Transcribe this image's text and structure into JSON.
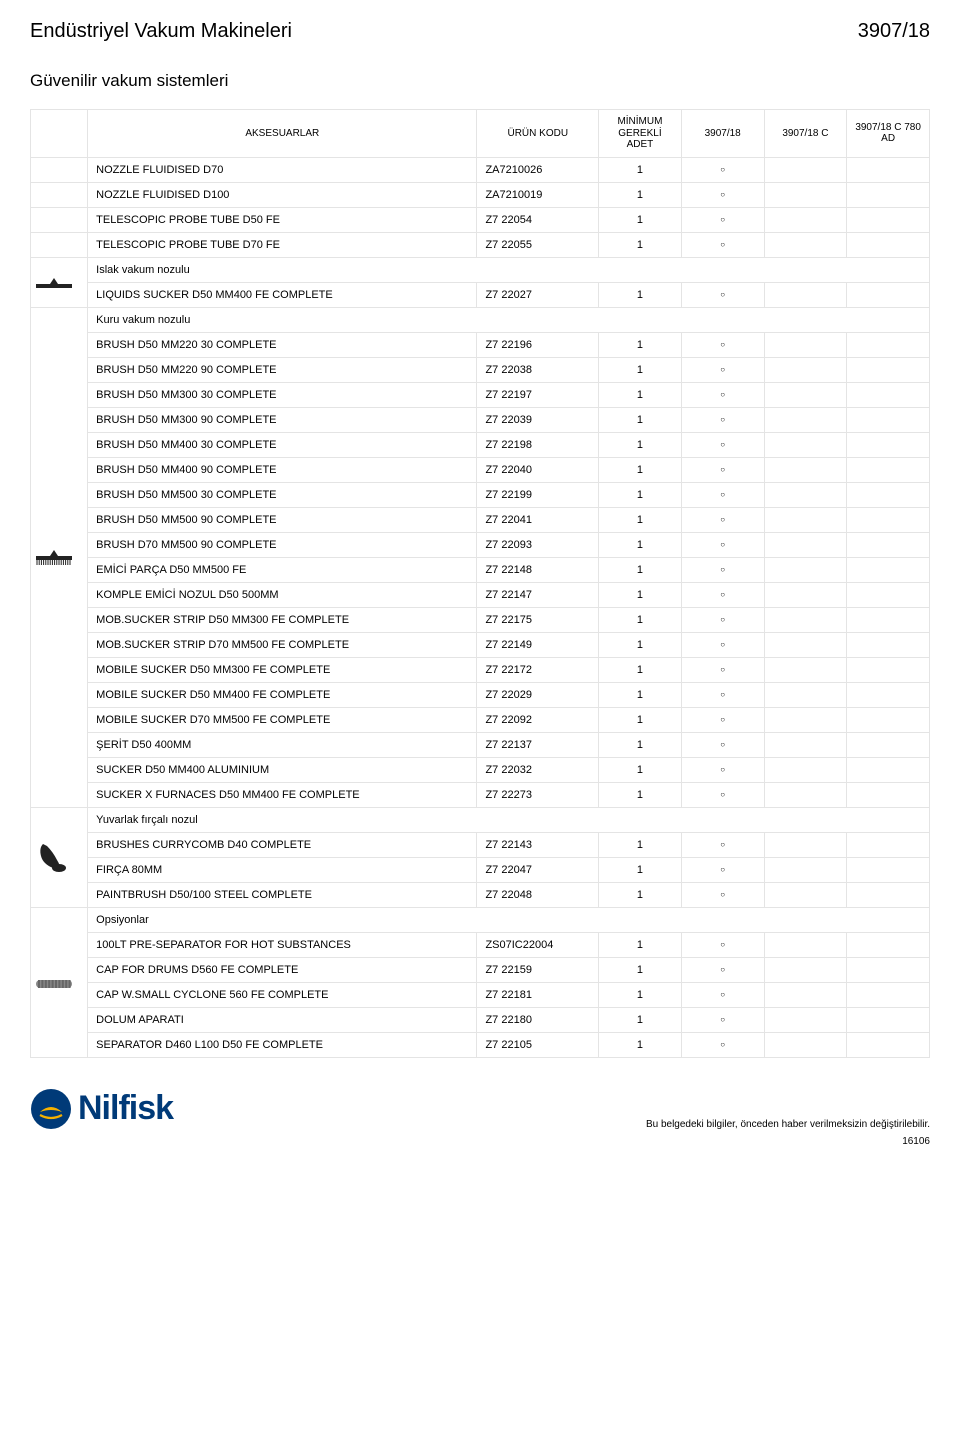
{
  "header": {
    "left": "Endüstriyel Vakum Makineleri",
    "right": "3907/18"
  },
  "subheader": "Güvenilir vakum sistemleri",
  "columns": {
    "accessories": "AKSESUARLAR",
    "code": "ÜRÜN KODU",
    "min": "MİNİMUM GEREKLİ ADET",
    "m1": "3907/18",
    "m2": "3907/18 C",
    "m3": "3907/18 C 780 AD"
  },
  "mark_glyph": "○",
  "sections": [
    {
      "icon": null,
      "title": null,
      "rows": [
        {
          "name": "NOZZLE FLUIDISED D70",
          "code": "ZA7210026",
          "qty": "1",
          "m": [
            true,
            false,
            false
          ]
        },
        {
          "name": "NOZZLE FLUIDISED D100",
          "code": "ZA7210019",
          "qty": "1",
          "m": [
            true,
            false,
            false
          ]
        },
        {
          "name": "TELESCOPIC PROBE TUBE D50 FE",
          "code": "Z7 22054",
          "qty": "1",
          "m": [
            true,
            false,
            false
          ]
        },
        {
          "name": "TELESCOPIC PROBE TUBE D70 FE",
          "code": "Z7 22055",
          "qty": "1",
          "m": [
            true,
            false,
            false
          ]
        }
      ]
    },
    {
      "icon": "wet-nozzle",
      "title": "Islak vakum nozulu",
      "rows": [
        {
          "name": "LIQUIDS SUCKER D50 MM400 FE COMPLETE",
          "code": "Z7 22027",
          "qty": "1",
          "m": [
            true,
            false,
            false
          ]
        }
      ]
    },
    {
      "icon": "dry-nozzle",
      "title": "Kuru vakum nozulu",
      "rows": [
        {
          "name": "BRUSH D50 MM220 30 COMPLETE",
          "code": "Z7 22196",
          "qty": "1",
          "m": [
            true,
            false,
            false
          ]
        },
        {
          "name": "BRUSH D50 MM220 90 COMPLETE",
          "code": "Z7 22038",
          "qty": "1",
          "m": [
            true,
            false,
            false
          ]
        },
        {
          "name": "BRUSH D50 MM300 30 COMPLETE",
          "code": "Z7 22197",
          "qty": "1",
          "m": [
            true,
            false,
            false
          ]
        },
        {
          "name": "BRUSH D50 MM300 90 COMPLETE",
          "code": "Z7 22039",
          "qty": "1",
          "m": [
            true,
            false,
            false
          ]
        },
        {
          "name": "BRUSH D50 MM400 30 COMPLETE",
          "code": "Z7 22198",
          "qty": "1",
          "m": [
            true,
            false,
            false
          ]
        },
        {
          "name": "BRUSH D50 MM400 90 COMPLETE",
          "code": "Z7 22040",
          "qty": "1",
          "m": [
            true,
            false,
            false
          ]
        },
        {
          "name": "BRUSH D50 MM500 30 COMPLETE",
          "code": "Z7 22199",
          "qty": "1",
          "m": [
            true,
            false,
            false
          ]
        },
        {
          "name": "BRUSH D50 MM500 90 COMPLETE",
          "code": "Z7 22041",
          "qty": "1",
          "m": [
            true,
            false,
            false
          ]
        },
        {
          "name": "BRUSH D70 MM500 90 COMPLETE",
          "code": "Z7 22093",
          "qty": "1",
          "m": [
            true,
            false,
            false
          ]
        },
        {
          "name": "EMİCİ PARÇA D50 MM500 FE",
          "code": "Z7 22148",
          "qty": "1",
          "m": [
            true,
            false,
            false
          ]
        },
        {
          "name": "KOMPLE EMİCİ NOZUL D50 500MM",
          "code": "Z7 22147",
          "qty": "1",
          "m": [
            true,
            false,
            false
          ]
        },
        {
          "name": "MOB.SUCKER STRIP D50 MM300 FE COMPLETE",
          "code": "Z7 22175",
          "qty": "1",
          "m": [
            true,
            false,
            false
          ]
        },
        {
          "name": "MOB.SUCKER STRIP D70 MM500 FE COMPLETE",
          "code": "Z7 22149",
          "qty": "1",
          "m": [
            true,
            false,
            false
          ]
        },
        {
          "name": "MOBILE SUCKER D50 MM300 FE COMPLETE",
          "code": "Z7 22172",
          "qty": "1",
          "m": [
            true,
            false,
            false
          ]
        },
        {
          "name": "MOBILE SUCKER D50 MM400 FE COMPLETE",
          "code": "Z7 22029",
          "qty": "1",
          "m": [
            true,
            false,
            false
          ]
        },
        {
          "name": "MOBILE SUCKER D70 MM500 FE COMPLETE",
          "code": "Z7 22092",
          "qty": "1",
          "m": [
            true,
            false,
            false
          ]
        },
        {
          "name": "ŞERİT D50 400MM",
          "code": "Z7 22137",
          "qty": "1",
          "m": [
            true,
            false,
            false
          ]
        },
        {
          "name": "SUCKER D50 MM400 ALUMINIUM",
          "code": "Z7 22032",
          "qty": "1",
          "m": [
            true,
            false,
            false
          ]
        },
        {
          "name": "SUCKER X FURNACES D50 MM400 FE COMPLETE",
          "code": "Z7 22273",
          "qty": "1",
          "m": [
            true,
            false,
            false
          ]
        }
      ]
    },
    {
      "icon": "round-brush",
      "title": "Yuvarlak fırçalı nozul",
      "rows": [
        {
          "name": "BRUSHES CURRYCOMB D40 COMPLETE",
          "code": "Z7 22143",
          "qty": "1",
          "m": [
            true,
            false,
            false
          ]
        },
        {
          "name": "FIRÇA 80MM",
          "code": "Z7 22047",
          "qty": "1",
          "m": [
            true,
            false,
            false
          ]
        },
        {
          "name": "PAINTBRUSH D50/100 STEEL COMPLETE",
          "code": "Z7 22048",
          "qty": "1",
          "m": [
            true,
            false,
            false
          ]
        }
      ]
    },
    {
      "icon": "preseparator",
      "title": "Opsiyonlar",
      "rows": [
        {
          "name": "100LT PRE-SEPARATOR FOR HOT SUBSTANCES",
          "code": "ZS07IC22004",
          "qty": "1",
          "m": [
            true,
            false,
            false
          ]
        },
        {
          "name": "CAP FOR DRUMS D560 FE COMPLETE",
          "code": "Z7 22159",
          "qty": "1",
          "m": [
            true,
            false,
            false
          ]
        },
        {
          "name": "CAP W.SMALL CYCLONE 560 FE COMPLETE",
          "code": "Z7 22181",
          "qty": "1",
          "m": [
            true,
            false,
            false
          ]
        },
        {
          "name": "DOLUM APARATI",
          "code": "Z7 22180",
          "qty": "1",
          "m": [
            true,
            false,
            false
          ]
        },
        {
          "name": "SEPARATOR D460 L100 D50 FE COMPLETE",
          "code": "Z7 22105",
          "qty": "1",
          "m": [
            true,
            false,
            false
          ]
        }
      ]
    }
  ],
  "logo": {
    "text": "Nilfisk",
    "circle_color": "#003a78",
    "accent_color": "#f6b100"
  },
  "disclaimer": "Bu belgedeki bilgiler, önceden haber verilmeksizin değiştirilebilir.",
  "page_number": "16106",
  "colors": {
    "border": "#e4e4e4",
    "text": "#000000",
    "bg": "#ffffff"
  }
}
